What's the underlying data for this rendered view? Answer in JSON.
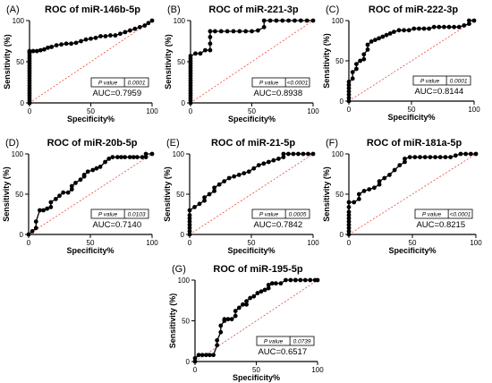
{
  "chart_data": [
    {
      "type": "line",
      "panel_label": "(A)",
      "title": "ROC of miR-146b-5p",
      "xlabel": "Specificity%",
      "ylabel": "Sensitivity (%)",
      "xlim": [
        0,
        100
      ],
      "ylim": [
        0,
        100
      ],
      "x_ticks": [
        0,
        50,
        100
      ],
      "y_ticks": [
        0,
        50,
        100
      ],
      "p_label": "P value",
      "p_value": "0.0001",
      "auc_label": "AUC=0.7959",
      "series": [
        {
          "x": [
            0,
            0,
            0,
            0,
            0,
            0,
            0,
            0,
            0,
            0,
            0,
            0,
            0,
            0,
            0,
            0,
            0,
            0,
            0,
            0,
            0,
            0,
            0,
            0,
            0,
            0,
            3,
            6,
            9,
            12,
            15,
            18,
            22,
            26,
            30,
            34,
            38,
            42,
            46,
            50,
            54,
            58,
            62,
            66,
            70,
            74,
            78,
            82,
            86,
            90,
            94,
            97,
            100
          ],
          "y": [
            0,
            3,
            6,
            9,
            12,
            15,
            18,
            21,
            24,
            27,
            30,
            33,
            36,
            39,
            42,
            45,
            48,
            51,
            54,
            57,
            60,
            63,
            0,
            0,
            0,
            62,
            63,
            63,
            64,
            65,
            67,
            68,
            70,
            71,
            72,
            72,
            73,
            75,
            77,
            78,
            79,
            81,
            81,
            82,
            82,
            84,
            86,
            88,
            90,
            92,
            94,
            97,
            100
          ],
          "_note": ""
        }
      ],
      "diagonal": true
    },
    {
      "type": "line",
      "panel_label": "(B)",
      "title": "ROC of miR-221-3p",
      "xlabel": "Specificity%",
      "ylabel": "Sensitivity (%)",
      "xlim": [
        0,
        100
      ],
      "ylim": [
        0,
        100
      ],
      "x_ticks": [
        0,
        50,
        100
      ],
      "y_ticks": [
        0,
        50,
        100
      ],
      "p_label": "P value",
      "p_value": "<0.0001",
      "auc_label": "AUC=0.8938",
      "series": [
        {
          "x": [
            0,
            0,
            0,
            0,
            0,
            0,
            0,
            0,
            0,
            0,
            0,
            0,
            0,
            0,
            0,
            0,
            0,
            0,
            0,
            0,
            4,
            8,
            12,
            16,
            16,
            16,
            16,
            20,
            25,
            30,
            35,
            40,
            45,
            50,
            55,
            60,
            60,
            65,
            70,
            75,
            80,
            85,
            90,
            95,
            100
          ],
          "y": [
            0,
            3,
            6,
            9,
            12,
            15,
            18,
            21,
            24,
            27,
            30,
            33,
            36,
            39,
            42,
            45,
            48,
            51,
            54,
            57,
            60,
            60,
            64,
            64,
            72,
            80,
            87,
            87,
            87,
            87,
            87,
            87,
            87,
            87,
            88,
            92,
            100,
            100,
            100,
            100,
            100,
            100,
            100,
            100,
            100
          ]
        }
      ],
      "diagonal": true
    },
    {
      "type": "line",
      "panel_label": "(C)",
      "title": "ROC of miR-222-3p",
      "xlabel": "Specificity%",
      "ylabel": "Sensitivity (%)",
      "xlim": [
        0,
        100
      ],
      "ylim": [
        0,
        100
      ],
      "x_ticks": [
        0,
        50,
        100
      ],
      "y_ticks": [
        0,
        50,
        100
      ],
      "p_label": "P value",
      "p_value": "0.0001",
      "auc_label": "AUC=0.8144",
      "series": [
        {
          "x": [
            0,
            0,
            0,
            0,
            0,
            0,
            0,
            3,
            3,
            6,
            6,
            9,
            12,
            12,
            15,
            15,
            18,
            21,
            24,
            27,
            30,
            33,
            36,
            40,
            44,
            48,
            52,
            56,
            60,
            64,
            68,
            72,
            76,
            80,
            84,
            88,
            92,
            96,
            96,
            100
          ],
          "y": [
            0,
            4,
            8,
            12,
            16,
            20,
            24,
            28,
            36,
            40,
            46,
            50,
            52,
            58,
            64,
            70,
            74,
            76,
            78,
            80,
            82,
            84,
            86,
            88,
            88,
            88,
            90,
            90,
            90,
            90,
            92,
            92,
            92,
            92,
            92,
            92,
            94,
            96,
            100,
            100
          ]
        }
      ],
      "diagonal": true
    },
    {
      "type": "line",
      "panel_label": "(D)",
      "title": "ROC of miR-20b-5p",
      "xlabel": "Specificity%",
      "ylabel": "Sensitivity (%)",
      "xlim": [
        0,
        100
      ],
      "ylim": [
        0,
        100
      ],
      "x_ticks": [
        0,
        50,
        100
      ],
      "y_ticks": [
        0,
        50,
        100
      ],
      "p_label": "P value",
      "p_value": "0.0103",
      "auc_label": "AUC=0.7140",
      "series": [
        {
          "x": [
            0,
            3,
            6,
            6,
            9,
            12,
            15,
            18,
            18,
            22,
            25,
            28,
            32,
            35,
            35,
            38,
            42,
            45,
            45,
            48,
            52,
            55,
            58,
            62,
            65,
            68,
            72,
            75,
            78,
            82,
            85,
            88,
            92,
            95,
            95,
            100
          ],
          "y": [
            0,
            4,
            8,
            16,
            30,
            30,
            32,
            34,
            40,
            44,
            48,
            52,
            52,
            56,
            60,
            64,
            68,
            72,
            74,
            78,
            80,
            82,
            84,
            90,
            94,
            96,
            96,
            96,
            96,
            96,
            96,
            96,
            96,
            96,
            100,
            100
          ]
        }
      ],
      "diagonal": true
    },
    {
      "type": "line",
      "panel_label": "(E)",
      "title": "ROC of miR-21-5p",
      "xlabel": "Specificity%",
      "ylabel": "Sensitivity (%)",
      "xlim": [
        0,
        100
      ],
      "ylim": [
        0,
        100
      ],
      "x_ticks": [
        0,
        50,
        100
      ],
      "y_ticks": [
        0,
        50,
        100
      ],
      "p_label": "P value",
      "p_value": "0.0005",
      "auc_label": "AUC=0.7842",
      "series": [
        {
          "x": [
            0,
            0,
            0,
            0,
            0,
            0,
            0,
            0,
            4,
            8,
            12,
            12,
            16,
            20,
            20,
            24,
            28,
            32,
            36,
            40,
            44,
            48,
            52,
            56,
            60,
            64,
            68,
            72,
            76,
            76,
            80,
            84,
            88,
            92,
            96,
            100
          ],
          "y": [
            0,
            4,
            8,
            12,
            16,
            20,
            24,
            30,
            34,
            38,
            42,
            46,
            50,
            54,
            58,
            62,
            66,
            70,
            72,
            74,
            76,
            78,
            82,
            86,
            88,
            90,
            92,
            94,
            96,
            100,
            100,
            100,
            100,
            100,
            100,
            100
          ]
        }
      ],
      "diagonal": true
    },
    {
      "type": "line",
      "panel_label": "(F)",
      "title": "ROC of miR-181a-5p",
      "xlabel": "Specificity%",
      "ylabel": "Sensitivity (%)",
      "xlim": [
        0,
        100
      ],
      "ylim": [
        0,
        100
      ],
      "x_ticks": [
        0,
        50,
        100
      ],
      "y_ticks": [
        0,
        50,
        100
      ],
      "p_label": "P value",
      "p_value": "<0.0001",
      "auc_label": "AUC=0.8215",
      "series": [
        {
          "x": [
            0,
            0,
            0,
            0,
            0,
            0,
            0,
            0,
            0,
            0,
            4,
            8,
            8,
            12,
            16,
            20,
            24,
            24,
            28,
            32,
            36,
            40,
            44,
            44,
            48,
            52,
            56,
            60,
            64,
            68,
            72,
            76,
            80,
            84,
            88,
            92,
            96,
            100
          ],
          "y": [
            0,
            4,
            8,
            12,
            16,
            20,
            24,
            28,
            34,
            40,
            40,
            44,
            50,
            54,
            56,
            58,
            62,
            66,
            70,
            74,
            80,
            86,
            90,
            94,
            96,
            96,
            96,
            96,
            96,
            96,
            96,
            96,
            96,
            98,
            100,
            100,
            100,
            100
          ]
        }
      ],
      "diagonal": true
    },
    {
      "type": "line",
      "panel_label": "(G)",
      "title": "ROC of miR-195-5p",
      "xlabel": "Specificity%",
      "ylabel": "Sensitivity (%)",
      "xlim": [
        0,
        100
      ],
      "ylim": [
        0,
        100
      ],
      "x_ticks": [
        0,
        50,
        100
      ],
      "y_ticks": [
        0,
        50,
        100
      ],
      "p_label": "P value",
      "p_value": "0.0739",
      "auc_label": "AUC=0.6517",
      "series": [
        {
          "x": [
            0,
            0,
            3,
            6,
            9,
            12,
            15,
            18,
            18,
            21,
            21,
            24,
            24,
            27,
            30,
            33,
            33,
            36,
            39,
            42,
            42,
            45,
            48,
            51,
            54,
            57,
            60,
            60,
            63,
            66,
            70,
            74,
            78,
            82,
            82,
            86,
            90,
            94,
            98,
            100
          ],
          "y": [
            0,
            4,
            8,
            8,
            8,
            8,
            8,
            20,
            26,
            36,
            44,
            50,
            52,
            52,
            52,
            56,
            62,
            66,
            70,
            70,
            74,
            78,
            80,
            84,
            86,
            88,
            90,
            94,
            96,
            96,
            96,
            100,
            100,
            100,
            100,
            100,
            100,
            100,
            100,
            100
          ]
        }
      ],
      "diagonal": true
    }
  ]
}
